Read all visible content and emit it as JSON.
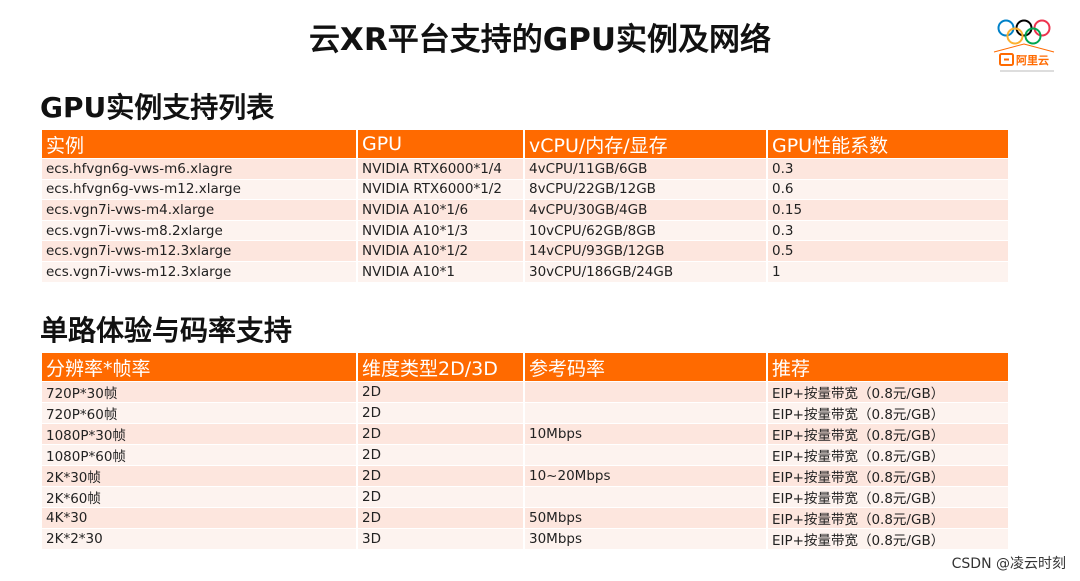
{
  "title": "云XR平台支持的GPU实例及网络",
  "logo": {
    "text": "阿里云",
    "icon": "olympic-rings-icon"
  },
  "gpu_section": {
    "title": "GPU实例支持列表",
    "headers": [
      "实例",
      "GPU",
      "vCPU/内存/显存",
      "GPU性能系数"
    ],
    "rows": [
      [
        "ecs.hfvgn6g-vws-m6.xlagre",
        "NVIDIA RTX6000*1/4",
        "4vCPU/11GB/6GB",
        "0.3"
      ],
      [
        "ecs.hfvgn6g-vws-m12.xlarge",
        "NVIDIA RTX6000*1/2",
        "8vCPU/22GB/12GB",
        "0.6"
      ],
      [
        "ecs.vgn7i-vws-m4.xlarge",
        "NVIDIA A10*1/6",
        "4vCPU/30GB/4GB",
        "0.15"
      ],
      [
        "ecs.vgn7i-vws-m8.2xlarge",
        "NVIDIA A10*1/3",
        "10vCPU/62GB/8GB",
        "0.3"
      ],
      [
        "ecs.vgn7i-vws-m12.3xlarge",
        "NVIDIA A10*1/2",
        "14vCPU/93GB/12GB",
        "0.5"
      ],
      [
        "ecs.vgn7i-vws-m12.3xlarge",
        "NVIDIA A10*1",
        "30vCPU/186GB/24GB",
        "1"
      ]
    ]
  },
  "stream_section": {
    "title": "单路体验与码率支持",
    "headers": [
      "分辨率*帧率",
      "维度类型2D/3D",
      "参考码率",
      "推荐"
    ],
    "rows": [
      [
        "720P*30帧",
        "2D",
        "",
        "EIP+按量带宽（0.8元/GB）"
      ],
      [
        "720P*60帧",
        "2D",
        "",
        "EIP+按量带宽（0.8元/GB）"
      ],
      [
        "1080P*30帧",
        "2D",
        "10Mbps",
        "EIP+按量带宽（0.8元/GB）"
      ],
      [
        "1080P*60帧",
        "2D",
        "",
        "EIP+按量带宽（0.8元/GB）"
      ],
      [
        "2K*30帧",
        "2D",
        "10~20Mbps",
        "EIP+按量带宽（0.8元/GB）"
      ],
      [
        "2K*60帧",
        "2D",
        "",
        "EIP+按量带宽（0.8元/GB）"
      ],
      [
        "4K*30",
        "2D",
        "50Mbps",
        "EIP+按量带宽（0.8元/GB）"
      ],
      [
        "2K*2*30",
        "3D",
        "30Mbps",
        "EIP+按量带宽（0.8元/GB）"
      ]
    ]
  },
  "watermark": "CSDN @凌云时刻",
  "colors": {
    "header": "#ff6a00",
    "row_even": "#fde6de",
    "row_odd": "#fdf3ef"
  }
}
